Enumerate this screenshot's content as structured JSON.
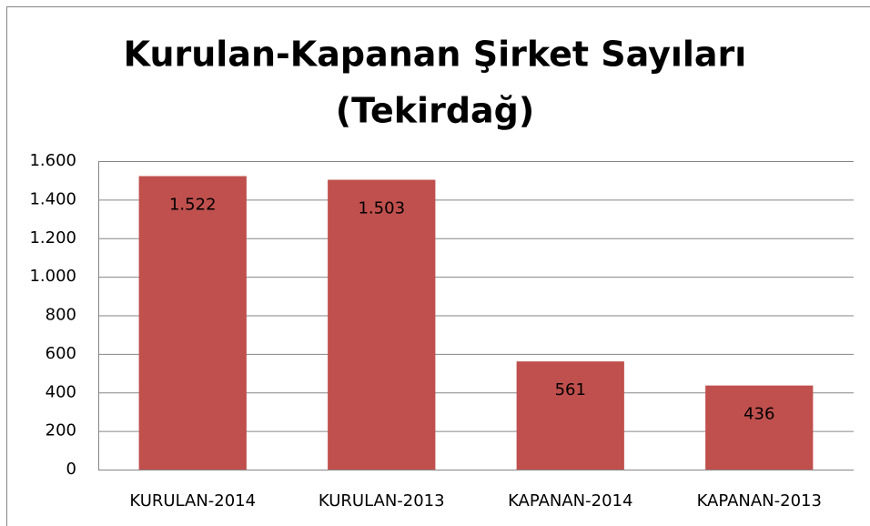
{
  "chart_data": {
    "type": "bar",
    "title": [
      "Kurulan-Kapanan Şirket Sayıları",
      "(Tekirdağ)"
    ],
    "categories": [
      "KURULAN-2014",
      "KURULAN-2013",
      "KAPANAN-2014",
      "KAPANAN-2013"
    ],
    "values": [
      1522,
      1503,
      561,
      436
    ],
    "value_labels": [
      "1.522",
      "1.503",
      "561",
      "436"
    ],
    "color": "#c0504d",
    "ylim": [
      0,
      1600
    ],
    "yticks": [
      0,
      200,
      400,
      600,
      800,
      {
        "value": 1000,
        "label": "1.000"
      },
      {
        "value": 1200,
        "label": "1.200"
      },
      {
        "value": 1400,
        "label": "1.400"
      },
      {
        "value": 1600,
        "label": "1.600"
      }
    ],
    "grid": true
  }
}
